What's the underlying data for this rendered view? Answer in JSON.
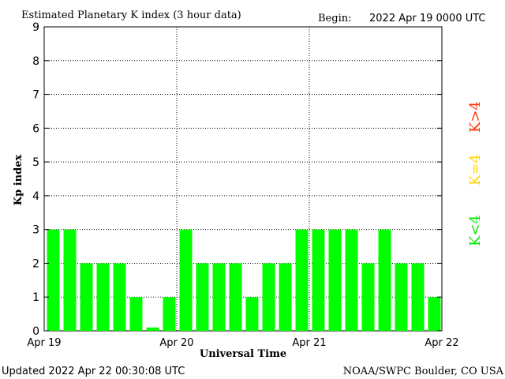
{
  "header": {
    "title": "Estimated Planetary K index (3 hour data)",
    "begin_label": "Begin:",
    "begin_value": "2022 Apr 19 0000 UTC"
  },
  "footer": {
    "updated": "Updated 2022 Apr 22 00:30:08 UTC",
    "credit": "NOAA/SWPC Boulder, CO USA"
  },
  "legend": [
    {
      "label": "K<4",
      "color": "#00ee00"
    },
    {
      "label": "K=4",
      "color": "#ffd700"
    },
    {
      "label": "K>4",
      "color": "#ff3300"
    }
  ],
  "chart_data": {
    "type": "bar",
    "title": "Estimated Planetary K index (3 hour data)",
    "xlabel": "Universal Time",
    "ylabel": "Kp index",
    "ylim": [
      0,
      9
    ],
    "yticks": [
      "0",
      "1",
      "2",
      "3",
      "4",
      "5",
      "6",
      "7",
      "8",
      "9"
    ],
    "xticks": [
      "Apr 19",
      "Apr 20",
      "Apr 21",
      "Apr 22"
    ],
    "grid": true,
    "bar_color": "#00ff00",
    "series": [
      {
        "values": [
          3,
          3,
          2,
          2,
          2,
          1,
          0.1,
          1,
          3,
          2,
          2,
          2,
          1,
          2,
          2,
          3,
          3,
          3,
          3,
          2,
          3,
          2,
          2,
          1
        ]
      }
    ]
  }
}
